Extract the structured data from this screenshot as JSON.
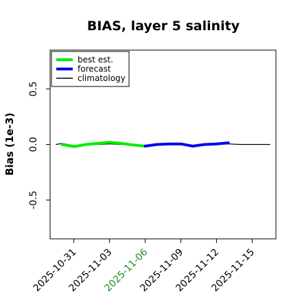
{
  "chart_data": {
    "type": "line",
    "title": "BIAS, layer 5 salinity",
    "xlabel": "",
    "ylabel": "Bias (1e-3)",
    "ylim": [
      -0.85,
      0.85
    ],
    "yticks": [
      -0.5,
      0.0,
      0.5
    ],
    "ytick_labels": [
      "-0.5",
      "0.0",
      "0.5"
    ],
    "xticks": [
      "2025-10-31",
      "2025-11-03",
      "2025-11-06",
      "2025-11-09",
      "2025-11-12",
      "2025-11-15"
    ],
    "xtick_colors": [
      "#000000",
      "#000000",
      "#228b22",
      "#000000",
      "#000000",
      "#000000"
    ],
    "xlim": [
      "2025-10-29T00:00",
      "2025-11-17T00:00"
    ],
    "grid": false,
    "legend_position": "top-left",
    "legend": [
      "best est.",
      "forecast",
      "climatology"
    ],
    "series": [
      {
        "name": "best est.",
        "color": "#00ee00",
        "x": [
          "2025-10-30",
          "2025-10-31",
          "2025-11-01",
          "2025-11-02",
          "2025-11-03",
          "2025-11-04",
          "2025-11-05",
          "2025-11-06"
        ],
        "y": [
          0.0,
          -0.02,
          0.0,
          0.01,
          0.02,
          0.01,
          -0.005,
          -0.015
        ]
      },
      {
        "name": "forecast",
        "color": "#0000ee",
        "x": [
          "2025-11-06",
          "2025-11-07",
          "2025-11-08",
          "2025-11-09",
          "2025-11-10",
          "2025-11-11",
          "2025-11-12",
          "2025-11-13"
        ],
        "y": [
          -0.015,
          0.0,
          0.005,
          0.005,
          -0.015,
          0.0,
          0.005,
          0.015
        ]
      },
      {
        "name": "climatology",
        "color": "#000000",
        "x": [
          "2025-10-29T12:00",
          "2025-10-30",
          "2025-10-31",
          "2025-11-01",
          "2025-11-02",
          "2025-11-03",
          "2025-11-04",
          "2025-11-05",
          "2025-11-06",
          "2025-11-07",
          "2025-11-08",
          "2025-11-09",
          "2025-11-10",
          "2025-11-11",
          "2025-11-12",
          "2025-11-13",
          "2025-11-14",
          "2025-11-15",
          "2025-11-16T12:00"
        ],
        "y": [
          0.0,
          0.01,
          -0.01,
          0.0,
          0.0,
          0.005,
          0.0,
          -0.005,
          -0.01,
          0.0,
          0.005,
          0.005,
          -0.012,
          0.0,
          0.0,
          0.005,
          0.0,
          0.0,
          0.0
        ]
      }
    ]
  }
}
